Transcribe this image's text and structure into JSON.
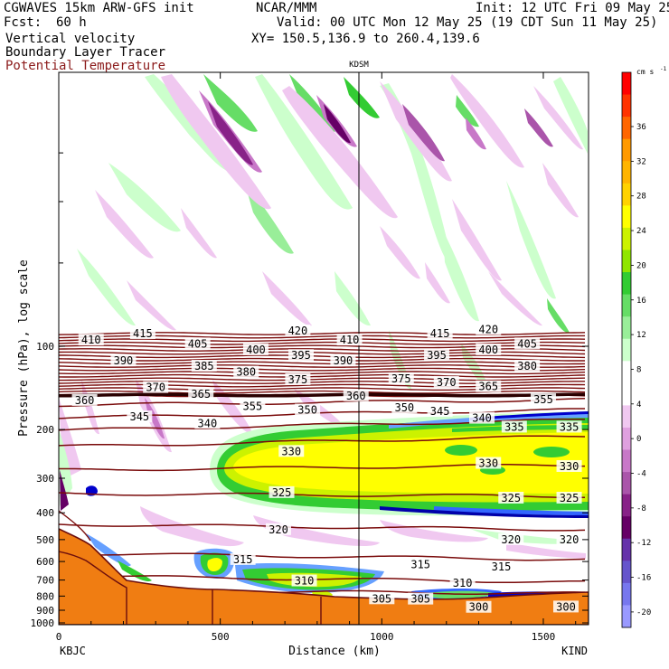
{
  "header": {
    "model_title": "CGWAVES 15km ARW-GFS init",
    "forecast_label": "Fcst:",
    "forecast_value": "60 h",
    "field_1": "Vertical velocity",
    "field_2": "Boundary Layer Tracer",
    "field_3": "Potential Temperature",
    "org": "NCAR/MMM",
    "init": "Init: 12 UTC Fri 09 May 25",
    "valid": "Valid: 00 UTC Mon 12 May 25 (19 CDT Sun 11 May 25)",
    "xy": "XY= 150.5,136.9 to 260.4,139.6",
    "station_marker": "KDSM",
    "left_station": "KBJC",
    "right_station": "KIND"
  },
  "colors": {
    "theta_line": "#7a0b0b",
    "terrain": "#f07d12",
    "terrain_edge": "#6b0d0d",
    "header_red": "#8b1a1a"
  },
  "chart_data": {
    "type": "heatmap",
    "xlabel": "Distance (km)",
    "ylabel": "Pressure (hPa), log scale",
    "xlim": [
      0,
      1640
    ],
    "x_ticks": [
      0,
      500,
      1000,
      1500
    ],
    "y_ticks": [
      100,
      200,
      300,
      400,
      500,
      600,
      700,
      800,
      900,
      1000
    ],
    "y_scale": "log",
    "colorbar": {
      "unit": "cm s",
      "unit_exp": "-1",
      "labels": [
        "36",
        "32",
        "28",
        "24",
        "20",
        "16",
        "12",
        "8",
        "4",
        "0",
        "-4",
        "-8",
        "-12",
        "-16",
        "-20"
      ],
      "colors": [
        "#ff0000",
        "#ff3300",
        "#ff6600",
        "#ff9900",
        "#ffb400",
        "#ffd200",
        "#ffff00",
        "#ccf200",
        "#90e600",
        "#33cc33",
        "#66dd66",
        "#99ee99",
        "#ccffcc",
        "#ffffff",
        "#ffffff",
        "#f0c8f0",
        "#dfa0df",
        "#c878c8",
        "#aa55aa",
        "#882288",
        "#660066",
        "#6633aa",
        "#6655cc",
        "#7777ee",
        "#9999ff"
      ]
    },
    "theta_labels": [
      {
        "t": "420",
        "x": 740,
        "p": 88
      },
      {
        "t": "420",
        "x": 1330,
        "p": 87
      },
      {
        "t": "415",
        "x": 260,
        "p": 90
      },
      {
        "t": "415",
        "x": 1180,
        "p": 90
      },
      {
        "t": "410",
        "x": 100,
        "p": 95
      },
      {
        "t": "410",
        "x": 900,
        "p": 95
      },
      {
        "t": "405",
        "x": 430,
        "p": 98
      },
      {
        "t": "405",
        "x": 1450,
        "p": 98
      },
      {
        "t": "400",
        "x": 610,
        "p": 103
      },
      {
        "t": "400",
        "x": 1330,
        "p": 103
      },
      {
        "t": "395",
        "x": 750,
        "p": 108
      },
      {
        "t": "395",
        "x": 1170,
        "p": 108
      },
      {
        "t": "390",
        "x": 200,
        "p": 113
      },
      {
        "t": "390",
        "x": 880,
        "p": 113
      },
      {
        "t": "385",
        "x": 450,
        "p": 118
      },
      {
        "t": "380",
        "x": 580,
        "p": 124
      },
      {
        "t": "380",
        "x": 1450,
        "p": 118
      },
      {
        "t": "375",
        "x": 740,
        "p": 132
      },
      {
        "t": "375",
        "x": 1060,
        "p": 131
      },
      {
        "t": "370",
        "x": 300,
        "p": 141
      },
      {
        "t": "370",
        "x": 1200,
        "p": 135
      },
      {
        "t": "365",
        "x": 440,
        "p": 149
      },
      {
        "t": "365",
        "x": 1330,
        "p": 140
      },
      {
        "t": "360",
        "x": 80,
        "p": 157
      },
      {
        "t": "360",
        "x": 920,
        "p": 151
      },
      {
        "t": "355",
        "x": 600,
        "p": 165
      },
      {
        "t": "355",
        "x": 1500,
        "p": 156
      },
      {
        "t": "350",
        "x": 770,
        "p": 170
      },
      {
        "t": "350",
        "x": 1070,
        "p": 167
      },
      {
        "t": "345",
        "x": 250,
        "p": 180
      },
      {
        "t": "345",
        "x": 1180,
        "p": 172
      },
      {
        "t": "340",
        "x": 460,
        "p": 190
      },
      {
        "t": "340",
        "x": 1310,
        "p": 182
      },
      {
        "t": "335",
        "x": 1410,
        "p": 196
      },
      {
        "t": "335",
        "x": 1580,
        "p": 196
      },
      {
        "t": "330",
        "x": 720,
        "p": 240
      },
      {
        "t": "330",
        "x": 1330,
        "p": 265
      },
      {
        "t": "330",
        "x": 1580,
        "p": 272
      },
      {
        "t": "325",
        "x": 690,
        "p": 338
      },
      {
        "t": "325",
        "x": 1400,
        "p": 354
      },
      {
        "t": "325",
        "x": 1580,
        "p": 354
      },
      {
        "t": "320",
        "x": 680,
        "p": 460
      },
      {
        "t": "320",
        "x": 1400,
        "p": 500
      },
      {
        "t": "320",
        "x": 1580,
        "p": 500
      },
      {
        "t": "315",
        "x": 570,
        "p": 590
      },
      {
        "t": "315",
        "x": 1120,
        "p": 615
      },
      {
        "t": "315",
        "x": 1370,
        "p": 628
      },
      {
        "t": "310",
        "x": 760,
        "p": 705
      },
      {
        "t": "310",
        "x": 1250,
        "p": 718
      },
      {
        "t": "305",
        "x": 1000,
        "p": 818
      },
      {
        "t": "305",
        "x": 1120,
        "p": 820
      },
      {
        "t": "300",
        "x": 1300,
        "p": 878
      },
      {
        "t": "300",
        "x": 1570,
        "p": 876
      }
    ]
  }
}
